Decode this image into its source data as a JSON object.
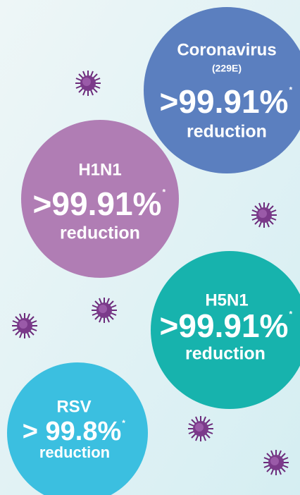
{
  "circles": [
    {
      "name": "Coronavirus",
      "strain": "(229E)",
      "stat": ">99.91%",
      "note": "*",
      "label": "reduction"
    },
    {
      "name": "H1N1",
      "stat": ">99.91%",
      "note": "*",
      "label": "reduction"
    },
    {
      "name": "H5N1",
      "stat": ">99.91%",
      "note": "*",
      "label": "reduction"
    },
    {
      "name": "RSV",
      "stat": "> 99.8%",
      "note": "*",
      "label": "reduction"
    }
  ]
}
